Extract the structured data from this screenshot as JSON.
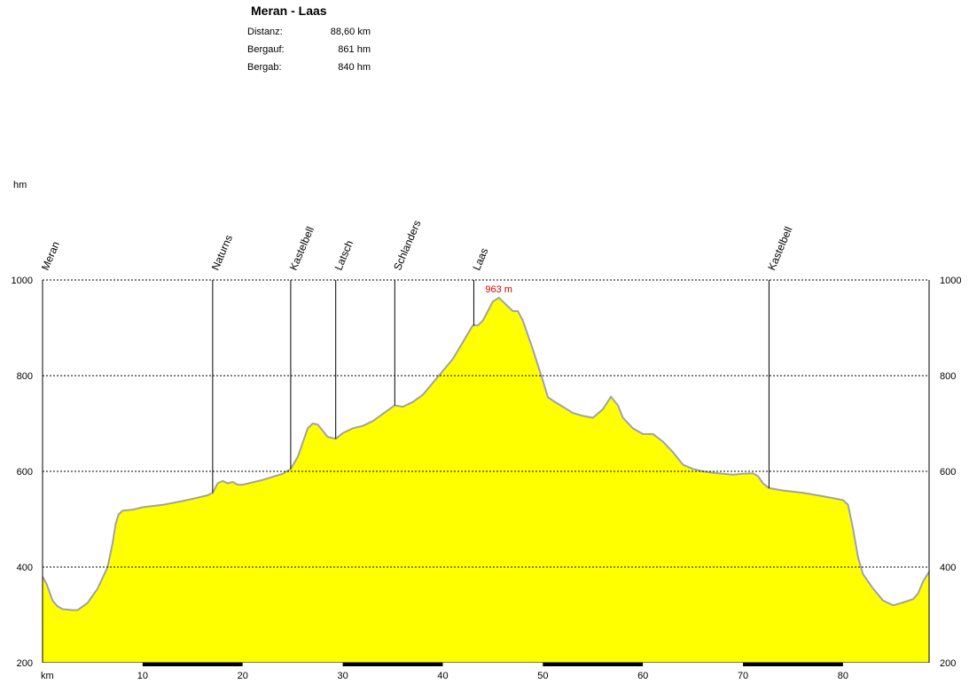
{
  "header": {
    "title": "Meran - Laas",
    "stats": [
      {
        "label": "Distanz:",
        "value": "88,60 km"
      },
      {
        "label": "Bergauf:",
        "value": "861 hm"
      },
      {
        "label": "Bergab:",
        "value": "840 hm"
      }
    ]
  },
  "chart_data": {
    "type": "area",
    "ylabel": "hm",
    "xlabel": "km",
    "xlim": [
      0,
      88.6
    ],
    "ylim": [
      200,
      1000
    ],
    "x_ticks": [
      10,
      20,
      30,
      40,
      50,
      60,
      70,
      80
    ],
    "y_ticks": [
      200,
      400,
      600,
      800,
      1000
    ],
    "grid": true,
    "fill_color": "#ffff00",
    "line_color": "#a0a0b0",
    "max_annotation": {
      "text": "963 m",
      "x": 45.6,
      "y": 963,
      "color": "#cc0000"
    },
    "waypoints": [
      {
        "name": "Meran",
        "x": 0,
        "y": 380
      },
      {
        "name": "Naturns",
        "x": 17.0,
        "y": 555
      },
      {
        "name": "Kastelbell",
        "x": 24.8,
        "y": 605
      },
      {
        "name": "Latsch",
        "x": 29.3,
        "y": 668
      },
      {
        "name": "Schlanders",
        "x": 35.2,
        "y": 738
      },
      {
        "name": "Laas",
        "x": 43.1,
        "y": 905
      },
      {
        "name": "Kastelbell",
        "x": 72.6,
        "y": 565
      }
    ],
    "profile": {
      "x": [
        0,
        0.4,
        1.0,
        1.5,
        2.0,
        3.0,
        3.5,
        4.5,
        5.5,
        6.5,
        7.0,
        7.3,
        7.6,
        8.0,
        9.0,
        10.0,
        12.0,
        14.0,
        15.5,
        16.5,
        17.0,
        17.5,
        18.0,
        18.5,
        19.0,
        19.5,
        20.0,
        22.0,
        24.0,
        24.8,
        25.5,
        26.0,
        26.5,
        27.0,
        27.5,
        28.0,
        28.5,
        29.3,
        30.0,
        31.0,
        32.0,
        33.0,
        34.0,
        35.0,
        35.2,
        36.0,
        37.0,
        38.0,
        39.0,
        40.0,
        41.0,
        42.0,
        43.0,
        43.5,
        44.0,
        44.5,
        45.0,
        45.6,
        46.0,
        46.5,
        47.0,
        47.5,
        48.0,
        49.0,
        50.0,
        50.5,
        51.0,
        52.0,
        53.0,
        54.0,
        55.0,
        56.0,
        56.8,
        57.5,
        58.0,
        59.0,
        60.0,
        61.0,
        62.0,
        63.0,
        64.0,
        65.0,
        66.0,
        67.0,
        68.0,
        69.0,
        70.0,
        71.0,
        71.5,
        72.0,
        72.6,
        74.0,
        76.0,
        78.0,
        80.0,
        80.5,
        81.0,
        81.5,
        82.0,
        83.0,
        84.0,
        85.0,
        86.0,
        87.0,
        87.5,
        88.0,
        88.6
      ],
      "y": [
        380,
        365,
        330,
        318,
        312,
        310,
        310,
        325,
        355,
        400,
        450,
        490,
        510,
        518,
        520,
        525,
        530,
        538,
        545,
        550,
        555,
        575,
        580,
        575,
        578,
        572,
        572,
        582,
        595,
        605,
        630,
        660,
        690,
        700,
        698,
        685,
        672,
        668,
        680,
        690,
        695,
        705,
        720,
        735,
        738,
        735,
        745,
        760,
        785,
        810,
        835,
        870,
        905,
        905,
        915,
        935,
        955,
        963,
        955,
        945,
        935,
        935,
        915,
        855,
        790,
        755,
        748,
        735,
        722,
        716,
        712,
        730,
        756,
        738,
        712,
        690,
        678,
        678,
        662,
        640,
        614,
        605,
        600,
        597,
        595,
        593,
        595,
        596,
        590,
        575,
        565,
        560,
        555,
        548,
        540,
        530,
        480,
        420,
        385,
        355,
        330,
        320,
        326,
        333,
        345,
        370,
        390
      ]
    }
  }
}
